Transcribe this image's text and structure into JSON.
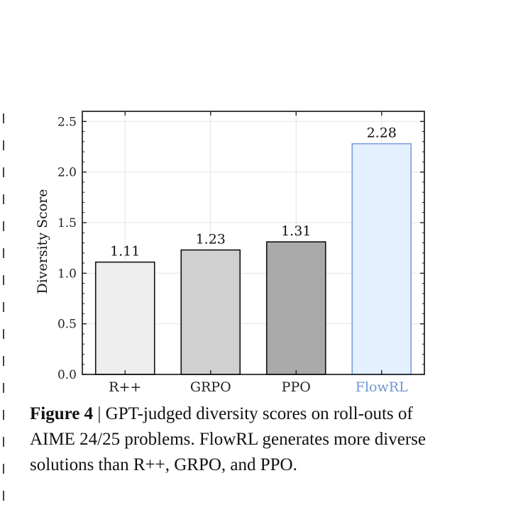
{
  "chart_data": {
    "type": "bar",
    "categories": [
      "R++",
      "GRPO",
      "PPO",
      "FlowRL"
    ],
    "values": [
      1.11,
      1.23,
      1.31,
      2.28
    ],
    "data_labels": [
      "1.11",
      "1.23",
      "1.31",
      "2.28"
    ],
    "bar_colors": [
      "#eeeeee",
      "#d0d0d0",
      "#aaaaaa",
      "#e4efff"
    ],
    "bar_edge_colors": [
      "#111111",
      "#111111",
      "#111111",
      "#7a9fd6"
    ],
    "category_label_colors": [
      "#222222",
      "#222222",
      "#222222",
      "#6f96d1"
    ],
    "xlabel": "",
    "ylabel": "Diversity Score",
    "ylim": [
      0.0,
      2.6
    ],
    "yticks": [
      0.0,
      0.5,
      1.0,
      1.5,
      2.0,
      2.5
    ],
    "ytick_labels": [
      "0.0",
      "0.5",
      "1.0",
      "1.5",
      "2.0",
      "2.5"
    ],
    "grid": true
  },
  "caption": {
    "label": "Figure 4",
    "separator": " | ",
    "text": "GPT-judged diversity scores on roll-outs of AIME 24/25 problems. FlowRL generates more diverse solutions than R++, GRPO, and PPO."
  }
}
